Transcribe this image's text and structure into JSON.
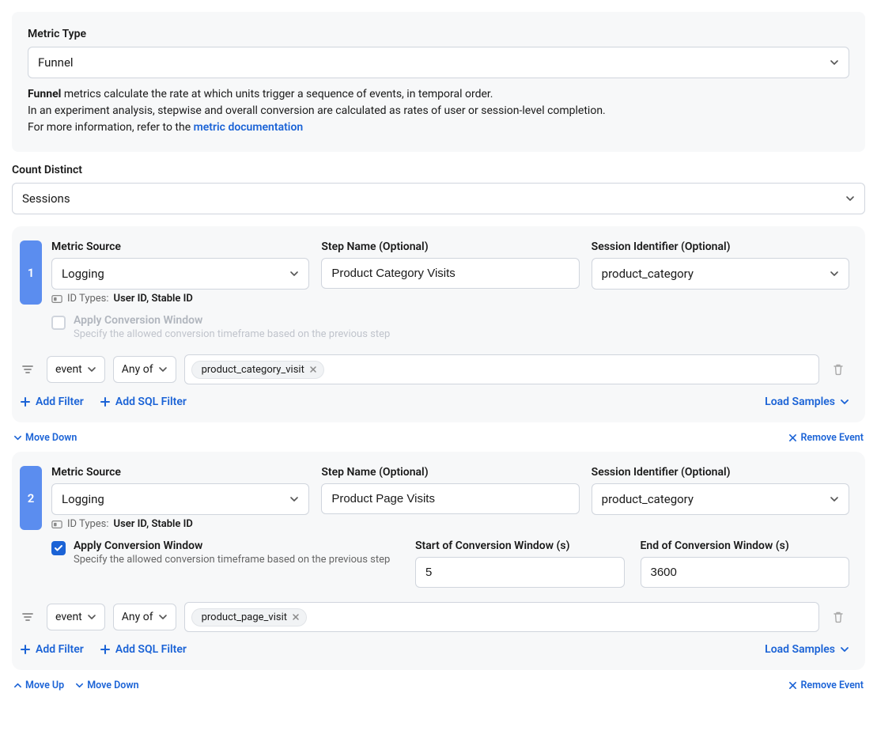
{
  "colors": {
    "card_bg": "#f7f8f9",
    "border": "#d0d5dd",
    "text": "#1a1a1a",
    "link": "#1b63d6",
    "step_badge": "#5b8def",
    "muted": "#666666",
    "disabled": "#b0b5bd"
  },
  "metric_type": {
    "label": "Metric Type",
    "value": "Funnel",
    "desc_strong": "Funnel",
    "desc_line1": " metrics calculate the rate at which units trigger a sequence of events, in temporal order.",
    "desc_line2": "In an experiment analysis, stepwise and overall conversion are calculated as rates of user or session-level completion.",
    "desc_line3_prefix": "For more information, refer to the ",
    "desc_link": "metric documentation"
  },
  "count_distinct": {
    "label": "Count Distinct",
    "value": "Sessions"
  },
  "labels": {
    "metric_source": "Metric Source",
    "step_name": "Step Name (Optional)",
    "session_identifier": "Session Identifier (Optional)",
    "id_types_prefix": "ID Types:",
    "apply_conv": "Apply Conversion Window",
    "apply_conv_desc": "Specify the allowed conversion timeframe based on the previous step",
    "conv_start": "Start of Conversion Window (s)",
    "conv_end": "End of Conversion Window (s)",
    "add_filter": "Add Filter",
    "add_sql_filter": "Add SQL Filter",
    "load_samples": "Load Samples",
    "move_down": "Move Down",
    "move_up": "Move Up",
    "remove_event": "Remove Event"
  },
  "steps": [
    {
      "number": "1",
      "metric_source": "Logging",
      "step_name": "Product Category Visits",
      "session_identifier": "product_category",
      "id_types": "User ID, Stable ID",
      "apply_conversion": false,
      "conv_disabled": true,
      "filter_field": "event",
      "filter_op": "Any of",
      "filter_tag": "product_category_visit",
      "show_move_up": false,
      "show_move_down": true
    },
    {
      "number": "2",
      "metric_source": "Logging",
      "step_name": "Product Page Visits",
      "session_identifier": "product_category",
      "id_types": "User ID, Stable ID",
      "apply_conversion": true,
      "conv_disabled": false,
      "conv_start": "5",
      "conv_end": "3600",
      "filter_field": "event",
      "filter_op": "Any of",
      "filter_tag": "product_page_visit",
      "show_move_up": true,
      "show_move_down": true
    }
  ]
}
